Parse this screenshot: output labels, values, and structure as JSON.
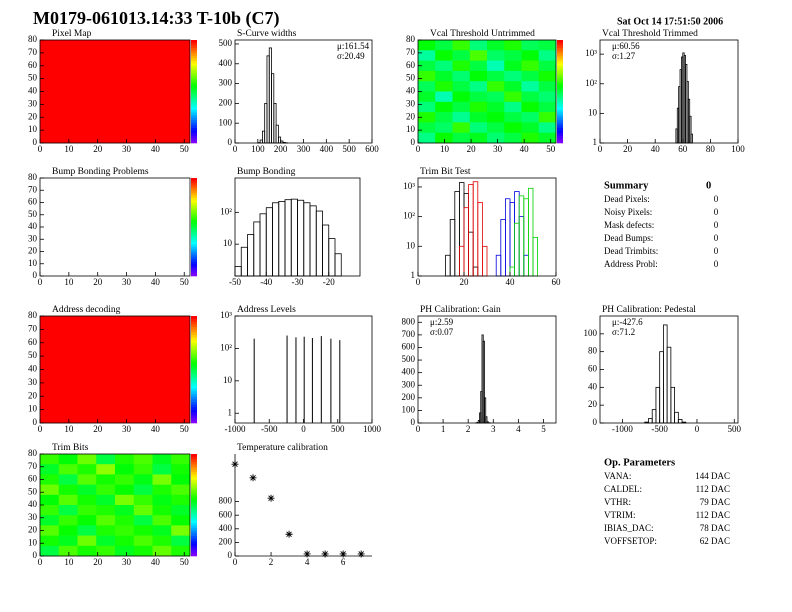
{
  "header": {
    "title": "M0179-061013.14:33 T-10b (C7)",
    "date": "Sat Oct 14 17:51:50 2006"
  },
  "chart_data": [
    {
      "type": "heatmap",
      "title": "Pixel Map",
      "xlim": [
        0,
        52
      ],
      "xticks": [
        0,
        10,
        20,
        30,
        40,
        50
      ],
      "ylim": [
        0,
        80
      ],
      "yticks": [
        0,
        10,
        20,
        30,
        40,
        50,
        60,
        70,
        80
      ],
      "zlim": [
        0,
        1
      ],
      "z": [
        [
          1
        ]
      ]
    },
    {
      "type": "histogram",
      "title": "S-Curve widths",
      "xlim": [
        0,
        600
      ],
      "xticks": [
        0,
        100,
        200,
        300,
        400,
        500,
        600
      ],
      "ylim": [
        0,
        520
      ],
      "yticks": [
        0,
        100,
        200,
        300,
        400,
        500
      ],
      "color": "#000000",
      "bins": [
        100,
        110,
        120,
        130,
        140,
        150,
        160,
        170,
        180,
        190,
        200,
        210,
        220,
        230,
        240
      ],
      "counts": [
        2,
        15,
        60,
        200,
        440,
        480,
        350,
        200,
        90,
        30,
        10,
        3,
        1,
        0
      ],
      "stats_corner": "top-right",
      "stats": [
        {
          "label": "μ:",
          "value": 161.54
        },
        {
          "label": "σ:",
          "value": 20.49
        }
      ]
    },
    {
      "type": "heatmap",
      "title": "Vcal Threshold Untrimmed",
      "xlim": [
        0,
        52
      ],
      "xticks": [
        0,
        10,
        20,
        30,
        40,
        50
      ],
      "ylim": [
        0,
        80
      ],
      "yticks": [
        0,
        10,
        20,
        30,
        40,
        50,
        60,
        70,
        80
      ],
      "zlim": [
        0,
        1
      ],
      "z": [
        [
          0.55,
          0.5,
          0.6,
          0.45,
          0.52,
          0.58,
          0.48,
          0.5
        ],
        [
          0.42,
          0.56,
          0.5,
          0.62,
          0.47,
          0.5,
          0.55,
          0.44
        ],
        [
          0.5,
          0.45,
          0.58,
          0.5,
          0.4,
          0.53,
          0.6,
          0.5
        ],
        [
          0.6,
          0.52,
          0.46,
          0.55,
          0.5,
          0.45,
          0.5,
          0.57
        ],
        [
          0.48,
          0.58,
          0.5,
          0.44,
          0.6,
          0.52,
          0.42,
          0.5
        ],
        [
          0.52,
          0.4,
          0.55,
          0.5,
          0.48,
          0.6,
          0.5,
          0.46
        ],
        [
          0.45,
          0.55,
          0.5,
          0.58,
          0.52,
          0.44,
          0.56,
          0.5
        ],
        [
          0.58,
          0.5,
          0.43,
          0.52,
          0.55,
          0.5,
          0.47,
          0.6
        ],
        [
          0.5,
          0.47,
          0.6,
          0.45,
          0.5,
          0.56,
          0.52,
          0.44
        ],
        [
          0.44,
          0.56,
          0.5,
          0.53,
          0.46,
          0.5,
          0.58,
          0.52
        ]
      ]
    },
    {
      "type": "histogram",
      "title": "Vcal Threshold Trimmed",
      "logy": true,
      "xlim": [
        0,
        100
      ],
      "xticks": [
        0,
        20,
        40,
        60,
        80,
        100
      ],
      "ylim": [
        1,
        3000
      ],
      "yticks": [
        1,
        10,
        {
          "value": 100,
          "label": "10²"
        },
        {
          "value": 1000,
          "label": "10³"
        }
      ],
      "color": "#000000",
      "bins": [
        54,
        55,
        56,
        57,
        58,
        59,
        60,
        61,
        62,
        63,
        64,
        65,
        66,
        67,
        68
      ],
      "counts": [
        1,
        3,
        15,
        80,
        300,
        800,
        1100,
        900,
        450,
        120,
        30,
        8,
        2,
        1
      ],
      "stats_corner": "top-left",
      "stats": [
        {
          "label": "μ:",
          "value": 60.56
        },
        {
          "label": "σ:",
          "value": 1.27
        }
      ]
    },
    {
      "type": "heatmap",
      "title": "Bump Bonding Problems",
      "xlim": [
        0,
        52
      ],
      "xticks": [
        0,
        10,
        20,
        30,
        40,
        50
      ],
      "ylim": [
        0,
        80
      ],
      "yticks": [
        0,
        10,
        20,
        30,
        40,
        50,
        60,
        70,
        80
      ],
      "zlim": [
        0,
        1
      ],
      "z": []
    },
    {
      "type": "histogram",
      "title": "Bump Bonding",
      "logy": true,
      "xlim": [
        -50,
        -10
      ],
      "xticks": [
        -50,
        -40,
        -30,
        -20
      ],
      "ylim": [
        1,
        1200
      ],
      "yticks": [
        10,
        {
          "value": 100,
          "label": "10²"
        }
      ],
      "color": "#000000",
      "bins": [
        -50,
        -48,
        -46,
        -44,
        -42,
        -40,
        -38,
        -36,
        -34,
        -32,
        -30,
        -28,
        -26,
        -24,
        -22,
        -20,
        -18,
        -16,
        -14
      ],
      "counts": [
        2,
        8,
        20,
        50,
        90,
        140,
        200,
        220,
        250,
        260,
        240,
        200,
        160,
        110,
        40,
        15,
        5,
        1
      ]
    },
    {
      "type": "histogram",
      "title": "Trim Bit Test",
      "logy": true,
      "xlim": [
        0,
        60
      ],
      "xticks": [
        0,
        20,
        40,
        60
      ],
      "ylim": [
        1,
        2000
      ],
      "yticks": [
        1,
        10,
        {
          "value": 100,
          "label": "10²"
        },
        {
          "value": 1000,
          "label": "10³"
        }
      ],
      "bins": [
        10,
        12,
        14,
        16,
        18,
        20,
        22,
        24,
        26,
        28,
        30,
        32,
        34,
        36,
        38,
        40,
        42,
        44,
        46,
        48,
        50,
        52
      ],
      "series": [
        {
          "color": "#000000",
          "counts": [
            1,
            5,
            80,
            700,
            1400,
            600,
            30,
            2,
            0,
            0,
            0,
            0,
            0,
            0,
            0,
            0,
            0,
            0,
            0,
            0,
            0
          ]
        },
        {
          "color": "#e00000",
          "counts": [
            0,
            0,
            0,
            1,
            10,
            200,
            1200,
            1500,
            300,
            10,
            1,
            0,
            0,
            0,
            0,
            0,
            0,
            0,
            0,
            0,
            0
          ]
        },
        {
          "color": "#0000e0",
          "counts": [
            0,
            0,
            0,
            0,
            0,
            0,
            0,
            0,
            0,
            0,
            0,
            1,
            5,
            80,
            400,
            300,
            700,
            100,
            5,
            1,
            0
          ]
        },
        {
          "color": "#00d000",
          "counts": [
            0,
            0,
            0,
            0,
            0,
            0,
            0,
            0,
            0,
            0,
            0,
            0,
            0,
            0,
            0,
            2,
            60,
            500,
            400,
            900,
            20
          ]
        }
      ]
    },
    {
      "type": "heatmap",
      "title": "Address decoding",
      "xlim": [
        0,
        52
      ],
      "xticks": [
        0,
        10,
        20,
        30,
        40,
        50
      ],
      "ylim": [
        0,
        80
      ],
      "yticks": [
        0,
        10,
        20,
        30,
        40,
        50,
        60,
        70,
        80
      ],
      "zlim": [
        0,
        1
      ],
      "z": [
        [
          1
        ]
      ]
    },
    {
      "type": "stem",
      "title": "Address Levels",
      "logy": true,
      "xlim": [
        -1000,
        1000
      ],
      "xticks": [
        -1000,
        -500,
        0,
        500,
        1000
      ],
      "ylim": [
        0.5,
        1000
      ],
      "yticks": [
        1,
        10,
        {
          "value": 100,
          "label": "10²"
        },
        {
          "value": 1000,
          "label": "10³"
        }
      ],
      "color": "#000000",
      "x": [
        -720,
        -240,
        -110,
        10,
        130,
        260,
        400,
        530
      ],
      "values": [
        200,
        250,
        220,
        230,
        210,
        240,
        200,
        180
      ]
    },
    {
      "type": "histogram",
      "title": "PH Calibration: Gain",
      "xlim": [
        0,
        5.5
      ],
      "xticks": [
        0,
        1,
        2,
        3,
        4,
        5
      ],
      "ylim": [
        0,
        850
      ],
      "yticks": [
        0,
        100,
        200,
        300,
        400,
        500,
        600,
        700,
        800
      ],
      "color": "#000000",
      "bins": [
        2.3,
        2.35,
        2.4,
        2.45,
        2.5,
        2.55,
        2.6,
        2.65,
        2.7,
        2.75,
        2.8,
        2.85,
        2.9
      ],
      "counts": [
        1,
        5,
        20,
        80,
        250,
        700,
        650,
        200,
        50,
        10,
        2,
        1
      ],
      "stats_corner": "top-left",
      "stats": [
        {
          "label": "μ:",
          "value": 2.59
        },
        {
          "label": "σ:",
          "value": 0.07
        }
      ]
    },
    {
      "type": "histogram",
      "title": "PH Calibration: Pedestal",
      "xlim": [
        -1300,
        550
      ],
      "xticks": [
        -1000,
        -500,
        0,
        500
      ],
      "ylim": [
        0,
        120
      ],
      "yticks": [
        0,
        20,
        40,
        60,
        80,
        100
      ],
      "color": "#000000",
      "bins": [
        -700,
        -650,
        -600,
        -550,
        -500,
        -450,
        -400,
        -350,
        -300,
        -250,
        -200,
        -150
      ],
      "counts": [
        1,
        5,
        15,
        40,
        80,
        110,
        85,
        40,
        12,
        4,
        1
      ],
      "stats_corner": "top-left",
      "stats": [
        {
          "label": "μ:",
          "value": -427.6
        },
        {
          "label": "σ:",
          "value": 71.2
        }
      ]
    },
    {
      "type": "heatmap",
      "title": "Trim Bits",
      "xlim": [
        0,
        52
      ],
      "xticks": [
        0,
        10,
        20,
        30,
        40,
        50
      ],
      "ylim": [
        0,
        80
      ],
      "yticks": [
        0,
        10,
        20,
        30,
        40,
        50,
        60,
        70,
        80
      ],
      "zlim": [
        0,
        1
      ],
      "z": [
        [
          0.6,
          0.55,
          0.65,
          0.5,
          0.58,
          0.62,
          0.53,
          0.6
        ],
        [
          0.52,
          0.62,
          0.58,
          0.68,
          0.55,
          0.6,
          0.5,
          0.57
        ],
        [
          0.58,
          0.5,
          0.63,
          0.57,
          0.6,
          0.54,
          0.66,
          0.55
        ],
        [
          0.65,
          0.57,
          0.52,
          0.6,
          0.56,
          0.5,
          0.58,
          0.62
        ],
        [
          0.55,
          0.63,
          0.57,
          0.52,
          0.66,
          0.6,
          0.54,
          0.58
        ],
        [
          0.6,
          0.5,
          0.6,
          0.58,
          0.53,
          0.64,
          0.57,
          0.52
        ],
        [
          0.52,
          0.6,
          0.56,
          0.63,
          0.58,
          0.5,
          0.62,
          0.56
        ],
        [
          0.63,
          0.56,
          0.5,
          0.58,
          0.6,
          0.57,
          0.53,
          0.66
        ],
        [
          0.57,
          0.53,
          0.65,
          0.52,
          0.57,
          0.62,
          0.58,
          0.5
        ],
        [
          0.5,
          0.62,
          0.57,
          0.6,
          0.53,
          0.57,
          0.64,
          0.58
        ]
      ]
    },
    {
      "type": "scatter",
      "title": "Temperature calibration",
      "xlim": [
        0,
        7.6
      ],
      "xticks": [
        0,
        2,
        4,
        6
      ],
      "ylim": [
        0,
        1500
      ],
      "yticks": [
        0,
        200,
        400,
        600,
        800
      ],
      "color": "#000000",
      "x": [
        0,
        1,
        2,
        3,
        4,
        5,
        6,
        7
      ],
      "values": [
        1350,
        1150,
        850,
        320,
        30,
        30,
        30,
        30
      ]
    }
  ],
  "summary": {
    "title": "Summary",
    "total": 0,
    "rows": [
      [
        "Dead Pixels:",
        0
      ],
      [
        "Noisy Pixels:",
        0
      ],
      [
        "Mask defects:",
        0
      ],
      [
        "Dead Bumps:",
        0
      ],
      [
        "Dead Trimbits:",
        0
      ],
      [
        "Address Probl:",
        0
      ]
    ]
  },
  "op_parameters": {
    "title": "Op. Parameters",
    "rows": [
      [
        "VANA:",
        "144 DAC"
      ],
      [
        "CALDEL:",
        "112 DAC"
      ],
      [
        "VTHR:",
        "79 DAC"
      ],
      [
        "VTRIM:",
        "112 DAC"
      ],
      [
        "IBIAS_DAC:",
        "78 DAC"
      ],
      [
        "VOFFSETOP:",
        "62 DAC"
      ]
    ]
  }
}
